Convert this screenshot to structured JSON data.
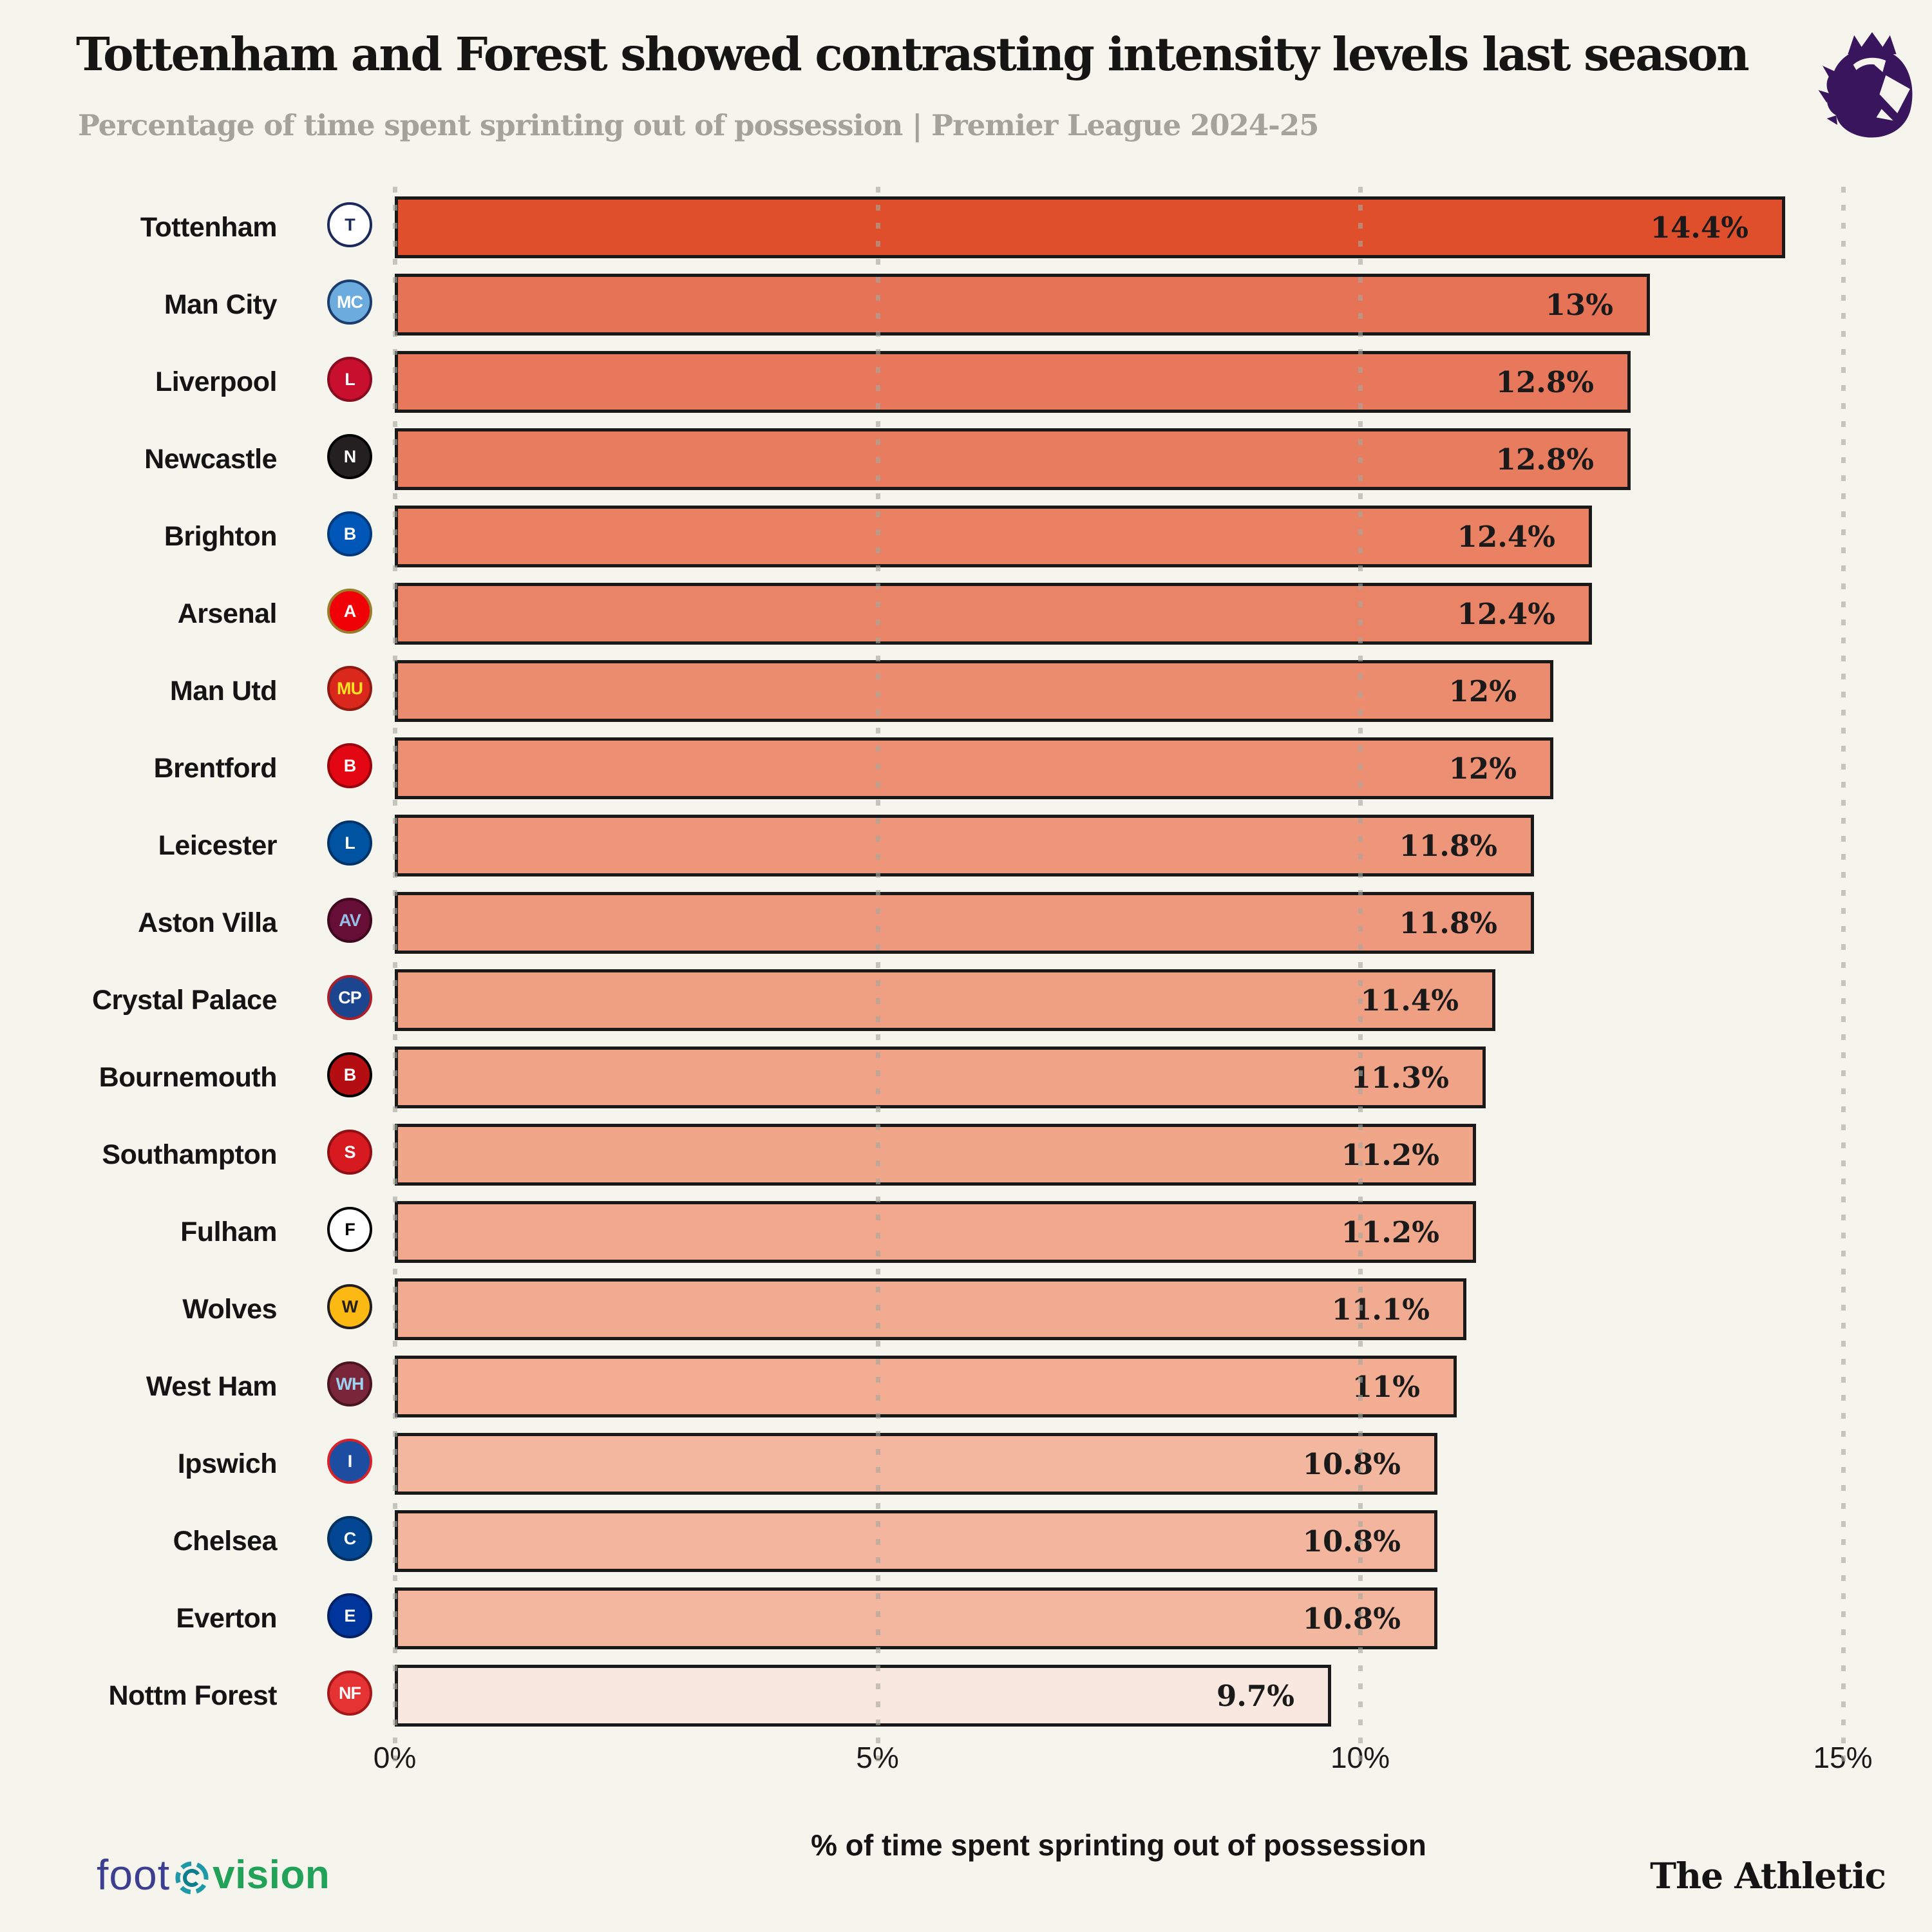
{
  "header": {
    "title": "Tottenham and Forest showed contrasting intensity levels last season",
    "subtitle": "Percentage of time spent sprinting out of possession | Premier League 2024-25"
  },
  "chart_data": {
    "type": "bar",
    "orientation": "horizontal",
    "title": "Tottenham and Forest showed contrasting intensity levels last season",
    "subtitle": "Percentage of time spent sprinting out of possession | Premier League 2024-25",
    "xlabel": "% of time spent sprinting out of possession",
    "xlim": [
      0,
      15
    ],
    "grid": "dotted-vertical",
    "x_ticks": [
      {
        "value": 0,
        "label": "0%"
      },
      {
        "value": 5,
        "label": "5%"
      },
      {
        "value": 10,
        "label": "10%"
      },
      {
        "value": 15,
        "label": "15%"
      }
    ],
    "categories": [
      "Tottenham",
      "Man City",
      "Liverpool",
      "Newcastle",
      "Brighton",
      "Arsenal",
      "Man Utd",
      "Brentford",
      "Leicester",
      "Aston Villa",
      "Crystal Palace",
      "Bournemouth",
      "Southampton",
      "Fulham",
      "Wolves",
      "West Ham",
      "Ipswich",
      "Chelsea",
      "Everton",
      "Nottm Forest"
    ],
    "values": [
      14.4,
      13,
      12.8,
      12.8,
      12.4,
      12.4,
      12,
      12,
      11.8,
      11.8,
      11.4,
      11.3,
      11.2,
      11.2,
      11.1,
      11,
      10.8,
      10.8,
      10.8,
      9.7
    ],
    "value_labels": [
      "14.4%",
      "13%",
      "12.8%",
      "12.8%",
      "12.4%",
      "12.4%",
      "12%",
      "12%",
      "11.8%",
      "11.8%",
      "11.4%",
      "11.3%",
      "11.2%",
      "11.2%",
      "11.1%",
      "11%",
      "10.8%",
      "10.8%",
      "10.8%",
      "9.7%"
    ],
    "bar_colors": [
      "#E04F2B",
      "#E77357",
      "#E8785C",
      "#E87C5F",
      "#E98162",
      "#EA8466",
      "#EB8C6E",
      "#EC8F72",
      "#ED967A",
      "#EE987D",
      "#EF9F82",
      "#F0A386",
      "#F0A689",
      "#F1A88C",
      "#F1AB90",
      "#F2AD92",
      "#F3B69E",
      "#F3B59D",
      "#F3B79F",
      "#F8E8DF"
    ],
    "bar_border_color": "#191919",
    "badges": [
      {
        "team": "Tottenham",
        "abbr": "T",
        "bg": "#FFFFFF",
        "fg": "#1B2A5B",
        "border": "#1B2A5B"
      },
      {
        "team": "Man City",
        "abbr": "MC",
        "bg": "#6CABDD",
        "fg": "#FFFFFF",
        "border": "#1C3C6E"
      },
      {
        "team": "Liverpool",
        "abbr": "L",
        "bg": "#C8102E",
        "fg": "#FFFFFF",
        "border": "#8A0B20"
      },
      {
        "team": "Newcastle",
        "abbr": "N",
        "bg": "#241F20",
        "fg": "#FFFFFF",
        "border": "#000000"
      },
      {
        "team": "Brighton",
        "abbr": "B",
        "bg": "#0057B8",
        "fg": "#FFFFFF",
        "border": "#003A7C"
      },
      {
        "team": "Arsenal",
        "abbr": "A",
        "bg": "#EF0107",
        "fg": "#FFFFFF",
        "border": "#9C7C2C"
      },
      {
        "team": "Man Utd",
        "abbr": "MU",
        "bg": "#DA291C",
        "fg": "#FBE122",
        "border": "#8E1A12"
      },
      {
        "team": "Brentford",
        "abbr": "B",
        "bg": "#E30613",
        "fg": "#FFFFFF",
        "border": "#9A040D"
      },
      {
        "team": "Leicester",
        "abbr": "L",
        "bg": "#0053A0",
        "fg": "#FFFFFF",
        "border": "#003368"
      },
      {
        "team": "Aston Villa",
        "abbr": "AV",
        "bg": "#670E36",
        "fg": "#95BFE5",
        "border": "#3F081F"
      },
      {
        "team": "Crystal Palace",
        "abbr": "CP",
        "bg": "#1B458F",
        "fg": "#FFFFFF",
        "border": "#A7202C"
      },
      {
        "team": "Bournemouth",
        "abbr": "B",
        "bg": "#B50E12",
        "fg": "#FFFFFF",
        "border": "#000000"
      },
      {
        "team": "Southampton",
        "abbr": "S",
        "bg": "#D71920",
        "fg": "#FFFFFF",
        "border": "#8E1015"
      },
      {
        "team": "Fulham",
        "abbr": "F",
        "bg": "#FFFFFF",
        "fg": "#000000",
        "border": "#000000"
      },
      {
        "team": "Wolves",
        "abbr": "W",
        "bg": "#FDB913",
        "fg": "#231F20",
        "border": "#231F20"
      },
      {
        "team": "West Ham",
        "abbr": "WH",
        "bg": "#7A263A",
        "fg": "#9CD3F0",
        "border": "#4A1422"
      },
      {
        "team": "Ipswich",
        "abbr": "I",
        "bg": "#1C4DA1",
        "fg": "#FFFFFF",
        "border": "#D8222A"
      },
      {
        "team": "Chelsea",
        "abbr": "C",
        "bg": "#034694",
        "fg": "#FFFFFF",
        "border": "#02305F"
      },
      {
        "team": "Everton",
        "abbr": "E",
        "bg": "#00369C",
        "fg": "#FFFFFF",
        "border": "#002065"
      },
      {
        "team": "Nottm Forest",
        "abbr": "NF",
        "bg": "#E53233",
        "fg": "#FFFFFF",
        "border": "#A51718"
      }
    ]
  },
  "league_logo": {
    "name": "Premier League",
    "color": "#38155C"
  },
  "footer": {
    "brand_left_part1": "foot",
    "brand_left_part2": "vision",
    "brand_left_colors": {
      "part1": "#3C3F90",
      "part2": "#22A158",
      "icon_teal": "#1E99A8",
      "icon_green": "#22A158"
    },
    "brand_right": "The Athletic"
  }
}
